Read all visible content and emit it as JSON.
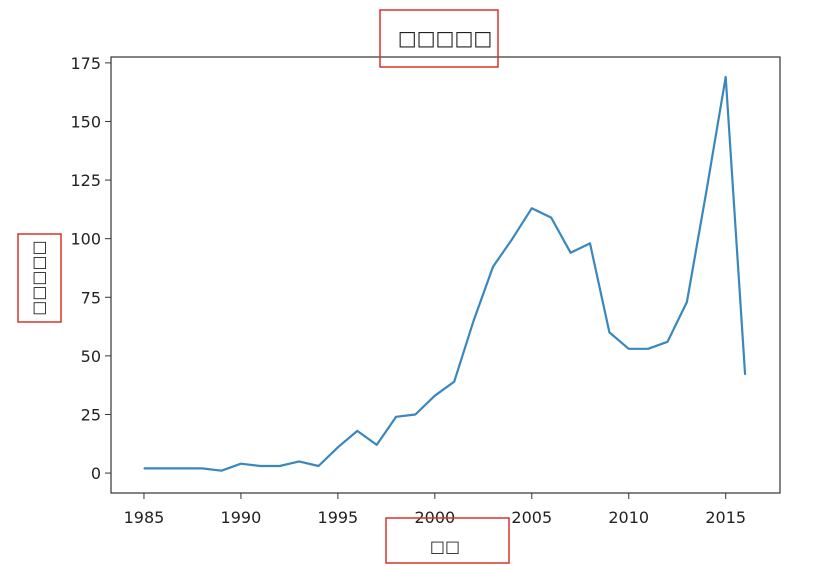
{
  "chart_data": {
    "type": "line",
    "title": "□□□□□",
    "xlabel": "□□",
    "ylabel": "□□□□□",
    "xlim": [
      1983.3,
      2017.8
    ],
    "ylim": [
      -8.5,
      177.5
    ],
    "x_ticks": [
      "1985",
      "1990",
      "1995",
      "2000",
      "2005",
      "2010",
      "2015"
    ],
    "y_ticks": [
      "0",
      "25",
      "50",
      "75",
      "100",
      "125",
      "150",
      "175"
    ],
    "grid": false,
    "series": [
      {
        "color": "#3a87bd",
        "x": [
          1985,
          1986,
          1987,
          1988,
          1989,
          1990,
          1991,
          1992,
          1993,
          1994,
          1995,
          1996,
          1997,
          1998,
          1999,
          2000,
          2001,
          2002,
          2003,
          2004,
          2005,
          2006,
          2007,
          2008,
          2009,
          2010,
          2011,
          2012,
          2013,
          2014,
          2015,
          2016
        ],
        "y": [
          2,
          2,
          2,
          2,
          1,
          4,
          3,
          3,
          5,
          3,
          11,
          18,
          12,
          24,
          25,
          33,
          39,
          65,
          88,
          100,
          113,
          109,
          94,
          98,
          60,
          53,
          53,
          56,
          73,
          120,
          169,
          42
        ]
      }
    ]
  },
  "annotations": {
    "highlight_color": "#d9322b"
  }
}
